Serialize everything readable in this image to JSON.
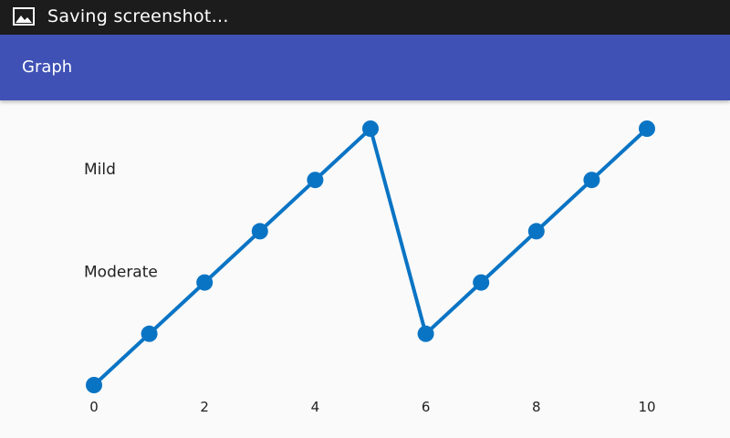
{
  "status_bar": {
    "icon": "image-icon",
    "text": "Saving screenshot..."
  },
  "app_bar": {
    "title": "Graph",
    "color": "#3f51b5"
  },
  "chart_data": {
    "type": "line",
    "x": [
      0,
      1,
      2,
      3,
      4,
      5,
      6,
      7,
      8,
      9,
      10
    ],
    "y": [
      0,
      1,
      2,
      3,
      4,
      5,
      1,
      2,
      3,
      4,
      5
    ],
    "xlim": [
      0,
      10
    ],
    "ylim": [
      0,
      5
    ],
    "x_ticks": [
      0,
      2,
      4,
      6,
      8,
      10
    ],
    "y_category_labels": [
      {
        "label": "Moderate",
        "y": 2
      },
      {
        "label": "Mild",
        "y": 4
      }
    ],
    "grid": false,
    "line_color": "#0a74c4"
  }
}
